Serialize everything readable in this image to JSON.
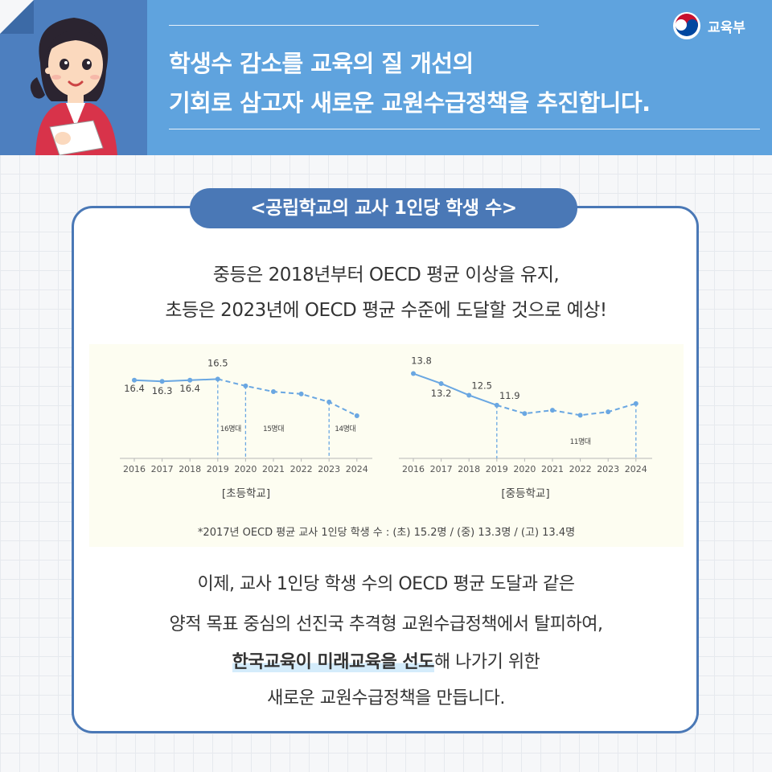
{
  "header": {
    "title_line1": "학생수 감소를 교육의 질 개선의",
    "title_line2": "기회로 삼고자 새로운 교원수급정책을 추진합니다.",
    "ministry": "교육부",
    "colors": {
      "header_bg": "#5fa3de",
      "header_left": "#4d7fbf",
      "accent": "#4a78b6"
    }
  },
  "section_title": "<공립학교의 교사 1인당 학생 수>",
  "intro": {
    "line1": "중등은 2018년부터 OECD 평균 이상을 유지,",
    "line2": "초등은 2023년에 OECD 평균 수준에 도달할 것으로 예상!"
  },
  "chart_data": [
    {
      "type": "line",
      "title": "[초등학교]",
      "x": [
        "2016",
        "2017",
        "2018",
        "2019",
        "2020",
        "2021",
        "2022",
        "2023",
        "2024"
      ],
      "series": [
        {
          "values": [
            16.4,
            16.3,
            16.4,
            16.5,
            15.9,
            15.4,
            15.2,
            14.5,
            13.3
          ]
        }
      ],
      "point_labels": [
        {
          "index": 0,
          "text": "16.4"
        },
        {
          "index": 1,
          "text": "16.3"
        },
        {
          "index": 2,
          "text": "16.4"
        },
        {
          "index": 3,
          "text": "16.5"
        }
      ],
      "solid_until_index": 3,
      "annotations": [
        {
          "text": "16명대",
          "x": "2019"
        },
        {
          "text": "15명대",
          "x": "2021"
        },
        {
          "text": "14명대",
          "x": "2023"
        }
      ],
      "markers": [
        "2019",
        "2020",
        "2023"
      ],
      "ylim": [
        10,
        18
      ],
      "color": "#6aa7e2"
    },
    {
      "type": "line",
      "title": "[중등학교]",
      "x": [
        "2016",
        "2017",
        "2018",
        "2019",
        "2020",
        "2021",
        "2022",
        "2023",
        "2024"
      ],
      "series": [
        {
          "values": [
            13.8,
            13.2,
            12.5,
            11.9,
            11.4,
            11.6,
            11.3,
            11.5,
            12.0
          ]
        }
      ],
      "point_labels": [
        {
          "index": 0,
          "text": "13.8"
        },
        {
          "index": 1,
          "text": "13.2"
        },
        {
          "index": 2,
          "text": "12.5"
        },
        {
          "index": 3,
          "text": "11.9"
        }
      ],
      "solid_until_index": 3,
      "annotations": [
        {
          "text": "11명대",
          "x": "2022"
        }
      ],
      "markers": [
        "2019",
        "2024"
      ],
      "ylim": [
        9,
        14.5
      ],
      "color": "#6aa7e2"
    }
  ],
  "footnote": "*2017년 OECD 평균 교사 1인당 학생 수 : (초) 15.2명 / (중) 13.3명 / (고) 13.4명",
  "body": {
    "line1": "이제, 교사 1인당 학생 수의 OECD 평균 도달과 같은",
    "line2": "양적 목표 중심의 선진국 추격형 교원수급정책에서 탈피하여,",
    "line3_highlight": "한국교육이 미래교육을 선도",
    "line3_rest": "해 나가기 위한",
    "line4": "새로운 교원수급정책을  만듭니다."
  }
}
